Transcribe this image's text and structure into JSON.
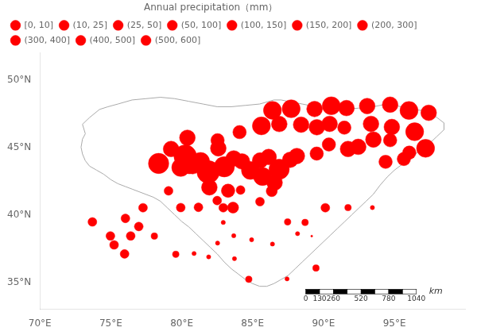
{
  "chart_data": {
    "type": "scatter",
    "legend_title": "Annual precipitation（mm）",
    "xlim": [
      70,
      100
    ],
    "ylim": [
      33,
      52
    ],
    "xticks": [
      {
        "value": 70,
        "label": "70°E"
      },
      {
        "value": 75,
        "label": "75°E"
      },
      {
        "value": 80,
        "label": "80°E"
      },
      {
        "value": 85,
        "label": "85°E"
      },
      {
        "value": 90,
        "label": "90°E"
      },
      {
        "value": 95,
        "label": "95°E"
      }
    ],
    "yticks": [
      {
        "value": 35,
        "label": "35°N"
      },
      {
        "value": 40,
        "label": "40°N"
      },
      {
        "value": 45,
        "label": "45°N"
      },
      {
        "value": 50,
        "label": "50°N"
      }
    ],
    "grid": false,
    "legend": "upper left",
    "series": [
      {
        "name": "[0, 10]",
        "color": "#FF0000",
        "x": [
          89.17
        ],
        "y": [
          38.42
        ]
      },
      {
        "name": "(10, 25]",
        "color": "#FF0000",
        "x": [
          80.87,
          81.9,
          83.72,
          82.53,
          83.67,
          84.93,
          86.4,
          88.17,
          93.45,
          82.93,
          87.43
        ],
        "y": [
          37.13,
          36.88,
          36.75,
          37.9,
          38.45,
          38.15,
          37.83,
          38.6,
          40.53,
          39.43,
          35.25
        ]
      },
      {
        "name": "(25, 50]",
        "color": "#FF0000",
        "x": [
          78.07,
          79.58,
          87.47,
          88.7,
          91.73,
          84.73,
          89.47
        ],
        "y": [
          38.42,
          37.07,
          39.47,
          39.43,
          40.53,
          35.22,
          36.05
        ]
      },
      {
        "name": "(50, 100]",
        "color": "#FF0000",
        "x": [
          82.93,
          81.18,
          79.93,
          79.07,
          77.27,
          76.03,
          75.23,
          74.97,
          73.7,
          75.97,
          76.4,
          76.97,
          90.13,
          85.52,
          84.15,
          82.5
        ],
        "y": [
          40.52,
          40.55,
          40.53,
          41.77,
          40.52,
          39.73,
          37.77,
          38.43,
          39.47,
          37.1,
          38.43,
          39.13,
          40.52,
          40.97,
          41.83,
          41.05
        ]
      },
      {
        "name": "(100, 150]",
        "color": "#FF0000",
        "x": [
          83.62,
          86.35
        ],
        "y": [
          40.53,
          41.75
        ]
      },
      {
        "name": "(150, 200]",
        "color": "#FF0000",
        "x": [
          89.52,
          90.38,
          94.7,
          82.53,
          84.08,
          91.47,
          96.05,
          94.38,
          95.67,
          83.27
        ],
        "y": [
          44.53,
          45.2,
          45.52,
          45.52,
          46.12,
          46.45,
          44.6,
          43.92,
          44.13,
          41.78
        ]
      },
      {
        "name": "(200, 300]",
        "color": "#FF0000",
        "x": [
          87.65,
          80.77,
          82.58,
          83.67,
          84.25,
          86.13,
          85.53,
          88.12,
          91.73,
          93.52,
          92.45,
          79.25,
          80.4,
          86.88,
          88.42,
          89.53,
          90.43,
          93.35,
          94.82,
          89.37,
          91.62,
          93.08,
          94.7,
          97.42,
          86.55,
          81.95
        ],
        "y": [
          44.07,
          43.6,
          44.92,
          44.17,
          43.95,
          44.28,
          44.02,
          44.35,
          44.87,
          45.57,
          45.03,
          44.87,
          45.7,
          46.72,
          46.67,
          46.48,
          46.73,
          46.73,
          46.5,
          47.83,
          47.9,
          48.05,
          48.15,
          47.55,
          42.38,
          42.03
        ]
      },
      {
        "name": "(300, 400]",
        "color": "#FF0000",
        "x": [
          81.33,
          84.85,
          79.93,
          85.62,
          96.43,
          97.2,
          86.4,
          87.72,
          90.55,
          96.03,
          85.7
        ],
        "y": [
          43.95,
          43.28,
          43.5,
          46.58,
          46.15,
          44.92,
          47.73,
          47.85,
          48.07,
          47.72,
          42.83
        ]
      },
      {
        "name": "(400, 500]",
        "color": "#FF0000",
        "x": [
          86.87,
          83.0,
          80.53,
          78.37
        ],
        "y": [
          43.37,
          43.55,
          43.78,
          43.8
        ]
      },
      {
        "name": "(500, 600]",
        "color": "#FF0000",
        "x": [
          81.87,
          80.25
        ],
        "y": [
          43.17,
          44.33
        ]
      }
    ],
    "boundary": {
      "color": "#aaaaaa",
      "points": [
        [
          73.0,
          46.7
        ],
        [
          73.5,
          47.2
        ],
        [
          74.2,
          47.8
        ],
        [
          74.8,
          48.0
        ],
        [
          75.5,
          48.2
        ],
        [
          76.5,
          48.5
        ],
        [
          77.5,
          48.6
        ],
        [
          78.5,
          48.7
        ],
        [
          79.5,
          48.6
        ],
        [
          80.5,
          48.4
        ],
        [
          81.5,
          48.2
        ],
        [
          82.5,
          48.0
        ],
        [
          83.5,
          48.0
        ],
        [
          84.5,
          48.1
        ],
        [
          85.5,
          48.2
        ],
        [
          86.5,
          48.5
        ],
        [
          87.0,
          48.5
        ],
        [
          87.5,
          48.4
        ],
        [
          88.5,
          48.2
        ],
        [
          89.5,
          48.0
        ],
        [
          90.5,
          47.8
        ],
        [
          91.5,
          47.8
        ],
        [
          92.5,
          47.9
        ],
        [
          93.5,
          48.0
        ],
        [
          94.5,
          48.2
        ],
        [
          95.5,
          48.0
        ],
        [
          96.5,
          47.8
        ],
        [
          97.0,
          47.7
        ],
        [
          97.5,
          47.5
        ],
        [
          98.0,
          47.2
        ],
        [
          98.5,
          46.8
        ],
        [
          98.5,
          46.3
        ],
        [
          98.0,
          45.8
        ],
        [
          97.5,
          45.3
        ],
        [
          97.0,
          45.0
        ],
        [
          96.5,
          44.5
        ],
        [
          96.0,
          44.1
        ],
        [
          95.5,
          43.7
        ],
        [
          95.0,
          43.3
        ],
        [
          95.0,
          43.3
        ],
        [
          94.5,
          42.8
        ],
        [
          94.0,
          42.2
        ],
        [
          93.5,
          41.5
        ],
        [
          93.0,
          41.0
        ],
        [
          92.5,
          40.5
        ],
        [
          92.0,
          40.0
        ],
        [
          91.5,
          39.5
        ],
        [
          91.0,
          39.0
        ],
        [
          90.5,
          38.5
        ],
        [
          90.0,
          38.0
        ],
        [
          89.5,
          37.5
        ],
        [
          89.0,
          37.0
        ],
        [
          88.5,
          36.5
        ],
        [
          88.0,
          36.0
        ],
        [
          87.5,
          35.5
        ],
        [
          87.0,
          35.2
        ],
        [
          86.5,
          34.9
        ],
        [
          86.0,
          34.7
        ],
        [
          85.5,
          34.7
        ],
        [
          85.0,
          34.9
        ],
        [
          84.5,
          35.2
        ],
        [
          84.0,
          35.6
        ],
        [
          83.5,
          36.0
        ],
        [
          83.0,
          36.5
        ],
        [
          82.5,
          37.1
        ],
        [
          82.0,
          37.6
        ],
        [
          81.5,
          38.1
        ],
        [
          81.0,
          38.6
        ],
        [
          80.5,
          39.1
        ],
        [
          80.0,
          39.5
        ],
        [
          79.5,
          40.0
        ],
        [
          79.0,
          40.5
        ],
        [
          78.5,
          41.0
        ],
        [
          78.0,
          41.3
        ],
        [
          77.5,
          41.5
        ],
        [
          77.0,
          41.7
        ],
        [
          76.5,
          41.9
        ],
        [
          76.0,
          42.1
        ],
        [
          75.5,
          42.3
        ],
        [
          75.0,
          42.6
        ],
        [
          74.5,
          43.0
        ],
        [
          74.0,
          43.3
        ],
        [
          73.5,
          43.6
        ],
        [
          73.2,
          44.0
        ],
        [
          73.0,
          44.5
        ],
        [
          72.9,
          45.0
        ],
        [
          73.0,
          45.6
        ],
        [
          73.2,
          46.0
        ],
        [
          73.0,
          46.7
        ]
      ]
    },
    "scalebar": {
      "ticks": [
        0,
        130,
        260,
        520,
        780,
        1040
      ],
      "unit": "km"
    }
  }
}
